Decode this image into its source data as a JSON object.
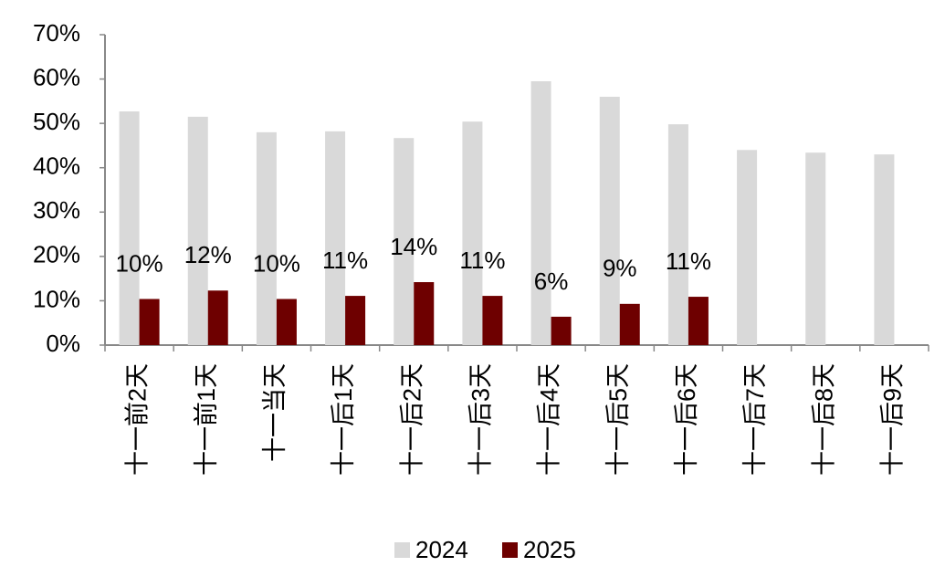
{
  "chart_data": {
    "type": "bar",
    "categories": [
      "十一前2天",
      "十一前1天",
      "十一当天",
      "十一后1天",
      "十一后2天",
      "十一后3天",
      "十一后4天",
      "十一后5天",
      "十一后6天",
      "十一后7天",
      "十一后8天",
      "十一后9天"
    ],
    "series": [
      {
        "name": "2024",
        "color": "#d9d9d9",
        "values": [
          52.7,
          51.5,
          48,
          48.2,
          46.7,
          50.4,
          59.5,
          56,
          49.8,
          44,
          43.4,
          43
        ]
      },
      {
        "name": "2025",
        "color": "#6e0000",
        "values": [
          10.4,
          12.3,
          10.4,
          11.1,
          14.2,
          11.1,
          6.4,
          9.3,
          10.9,
          null,
          null,
          null
        ],
        "value_labels": [
          "10%",
          "12%",
          "10%",
          "11%",
          "14%",
          "11%",
          "6%",
          "9%",
          "11%",
          null,
          null,
          null
        ]
      }
    ],
    "ylim": [
      0,
      70
    ],
    "yticks": [
      {
        "value": 0,
        "label": "0%"
      },
      {
        "value": 10,
        "label": "10%"
      },
      {
        "value": 20,
        "label": "20%"
      },
      {
        "value": 30,
        "label": "30%"
      },
      {
        "value": 40,
        "label": "40%"
      },
      {
        "value": 50,
        "label": "50%"
      },
      {
        "value": 60,
        "label": "60%"
      },
      {
        "value": 70,
        "label": "70%"
      }
    ],
    "grid": false,
    "legend": "bottom"
  }
}
